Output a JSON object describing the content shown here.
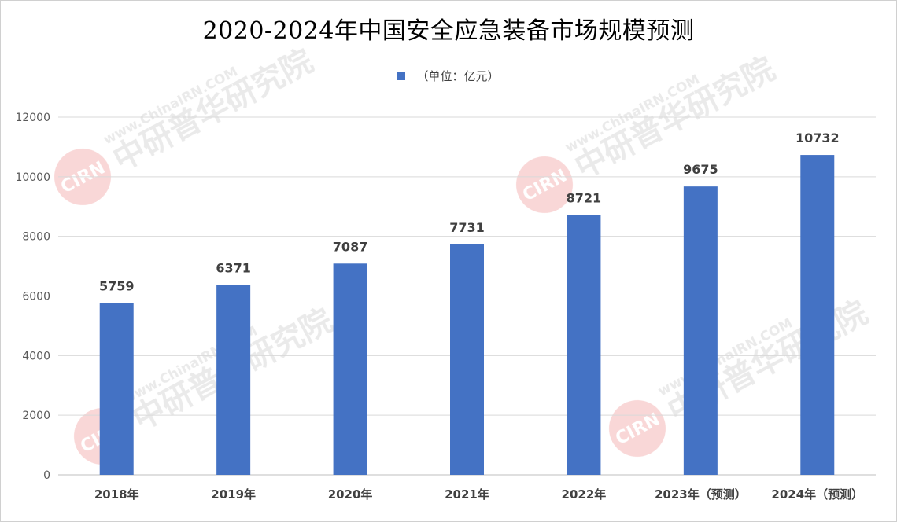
{
  "chart_data": {
    "type": "bar",
    "title": "2020-2024年中国安全应急装备市场规模预测",
    "categories": [
      "2018年",
      "2019年",
      "2020年",
      "2021年",
      "2022年",
      "2023年（预测）",
      "2024年（预测）"
    ],
    "series": [
      {
        "name": "（单位：亿元）",
        "values": [
          5759,
          6371,
          7087,
          7731,
          8721,
          9675,
          10732
        ],
        "color": "#4472C4"
      }
    ],
    "ylim": [
      0,
      12000
    ],
    "yticks": [
      0,
      2000,
      4000,
      6000,
      8000,
      10000,
      12000
    ],
    "grid": true,
    "legend_position": "top-center",
    "data_labels": true
  },
  "watermark": {
    "logo_text": "CIRN",
    "brand_text": "中研普华研究院",
    "url_text": "www.ChinaIRN.COM",
    "color": "#d9d9d9",
    "accent_color": "#f4b6b6"
  }
}
